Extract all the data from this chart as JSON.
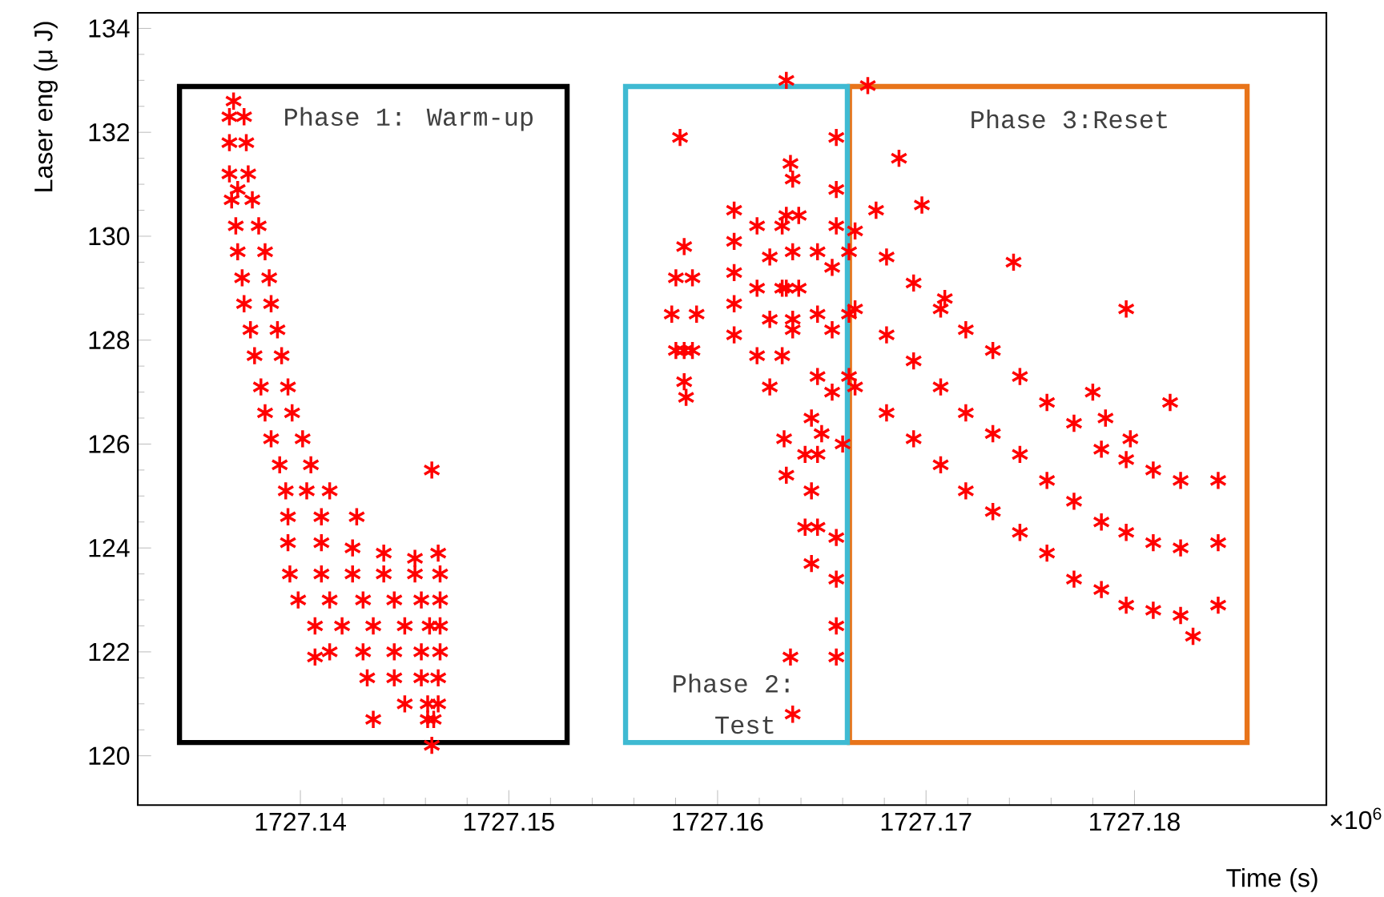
{
  "chart_data": {
    "type": "scatter",
    "xlabel": "Time (s)",
    "ylabel": "Laser eng (μ J)",
    "xlim": [
      1727.1322,
      1727.1892
    ],
    "ylim": [
      119.05,
      134.3
    ],
    "xticks": [
      1727.14,
      1727.15,
      1727.16,
      1727.17,
      1727.18
    ],
    "yticks": [
      120,
      122,
      124,
      126,
      128,
      130,
      132,
      134
    ],
    "marker": "cross",
    "annotations": [
      "×10$^{6}$",
      "Phase 1: Warm-up",
      "Phase 2:",
      "Test",
      "Phase 3:Reset"
    ],
    "series": [
      {
        "color": "#ff0000",
        "x": [
          1727.1368,
          1727.1366,
          1727.1373,
          1727.1366,
          1727.1374,
          1727.1366,
          1727.1375,
          1727.137,
          1727.1367,
          1727.1377,
          1727.1369,
          1727.138,
          1727.137,
          1727.1383,
          1727.1372,
          1727.1385,
          1727.1373,
          1727.1386,
          1727.1376,
          1727.1389,
          1727.1378,
          1727.1391,
          1727.1381,
          1727.1394,
          1727.1383,
          1727.1396,
          1727.1386,
          1727.1401,
          1727.139,
          1727.1405,
          1727.1393,
          1727.1403,
          1727.1414,
          1727.1394,
          1727.141,
          1727.1427,
          1727.1394,
          1727.141,
          1727.1425,
          1727.144,
          1727.1455,
          1727.1466,
          1727.1395,
          1727.141,
          1727.1425,
          1727.144,
          1727.1455,
          1727.1467,
          1727.1399,
          1727.1414,
          1727.143,
          1727.1445,
          1727.1458,
          1727.1467,
          1727.1407,
          1727.142,
          1727.1435,
          1727.145,
          1727.1462,
          1727.1467,
          1727.1414,
          1727.143,
          1727.1445,
          1727.1458,
          1727.1467,
          1727.1432,
          1727.1445,
          1727.1458,
          1727.1466,
          1727.145,
          1727.1461,
          1727.1466,
          1727.1461,
          1727.1464,
          1727.1463,
          1727.1407,
          1727.1435,
          1727.1463,
          1727.1582,
          1727.1584,
          1727.158,
          1727.1588,
          1727.1578,
          1727.159,
          1727.1584,
          1727.158,
          1727.1588,
          1727.1584,
          1727.1585,
          1727.1608,
          1727.1608,
          1727.1608,
          1727.1608,
          1727.1608,
          1727.1619,
          1727.1631,
          1727.1625,
          1727.1619,
          1727.1631,
          1727.1625,
          1727.1619,
          1727.1631,
          1727.1625,
          1727.1633,
          1727.1635,
          1727.1636,
          1727.1633,
          1727.1639,
          1727.1636,
          1727.1633,
          1727.1639,
          1727.1636,
          1727.1636,
          1727.1645,
          1727.1642,
          1727.1648,
          1727.1645,
          1727.1642,
          1727.1648,
          1727.1645,
          1727.1632,
          1727.1633,
          1727.1657,
          1727.1657,
          1727.1657,
          1727.1648,
          1727.1655,
          1727.1663,
          1727.1648,
          1727.1655,
          1727.1663,
          1727.1648,
          1727.1655,
          1727.1663,
          1727.165,
          1727.166,
          1727.1657,
          1727.1657,
          1727.1657,
          1727.1657,
          1727.1635,
          1727.1636,
          1727.1666,
          1727.1666,
          1727.1666,
          1727.1681,
          1727.1681,
          1727.1681,
          1727.1694,
          1727.1694,
          1727.1694,
          1727.1707,
          1727.1707,
          1727.1707,
          1727.1719,
          1727.1719,
          1727.1719,
          1727.1732,
          1727.1732,
          1727.1732,
          1727.1745,
          1727.1745,
          1727.1745,
          1727.1758,
          1727.1758,
          1727.1758,
          1727.1771,
          1727.1771,
          1727.1771,
          1727.1784,
          1727.1784,
          1727.1784,
          1727.1796,
          1727.1796,
          1727.1796,
          1727.1809,
          1727.1809,
          1727.1809,
          1727.1822,
          1727.1822,
          1727.1822,
          1727.184,
          1727.184,
          1727.184,
          1727.1687,
          1727.1698,
          1727.1742,
          1727.1796,
          1727.178,
          1727.1817,
          1727.1786,
          1727.1798,
          1727.1828,
          1727.1672,
          1727.1676,
          1727.1709
        ],
        "values": [
          132.6,
          132.3,
          132.3,
          131.8,
          131.8,
          131.2,
          131.2,
          130.9,
          130.7,
          130.7,
          130.2,
          130.2,
          129.7,
          129.7,
          129.2,
          129.2,
          128.7,
          128.7,
          128.2,
          128.2,
          127.7,
          127.7,
          127.1,
          127.1,
          126.6,
          126.6,
          126.1,
          126.1,
          125.6,
          125.6,
          125.1,
          125.1,
          125.1,
          124.6,
          124.6,
          124.6,
          124.1,
          124.1,
          124.0,
          123.9,
          123.8,
          123.9,
          123.5,
          123.5,
          123.5,
          123.5,
          123.5,
          123.5,
          123.0,
          123.0,
          123.0,
          123.0,
          123.0,
          123.0,
          122.5,
          122.5,
          122.5,
          122.5,
          122.5,
          122.5,
          122.0,
          122.0,
          122.0,
          122.0,
          122.0,
          121.5,
          121.5,
          121.5,
          121.5,
          121.0,
          121.0,
          121.0,
          120.7,
          120.7,
          125.5,
          121.9,
          120.7,
          120.2,
          131.9,
          129.8,
          129.2,
          129.2,
          128.5,
          128.5,
          127.8,
          127.8,
          127.8,
          127.2,
          126.9,
          130.5,
          129.9,
          129.3,
          128.7,
          128.1,
          130.2,
          130.2,
          129.6,
          129.0,
          129.0,
          128.4,
          127.7,
          127.7,
          127.1,
          133.0,
          131.4,
          131.1,
          130.4,
          130.4,
          129.7,
          129.0,
          129.0,
          128.4,
          128.2,
          126.5,
          125.8,
          125.8,
          125.1,
          124.4,
          124.4,
          123.7,
          126.1,
          125.4,
          131.9,
          130.9,
          130.2,
          129.7,
          129.4,
          129.7,
          128.5,
          128.2,
          128.5,
          127.3,
          127.0,
          127.3,
          126.2,
          126.0,
          124.2,
          123.4,
          122.5,
          121.9,
          121.9,
          120.8,
          130.1,
          128.6,
          127.1,
          129.6,
          128.1,
          126.6,
          129.1,
          127.6,
          126.1,
          128.6,
          127.1,
          125.6,
          128.2,
          126.6,
          125.1,
          127.8,
          126.2,
          124.7,
          127.3,
          125.8,
          124.3,
          126.8,
          125.3,
          123.9,
          126.4,
          124.9,
          123.4,
          125.9,
          124.5,
          123.2,
          125.7,
          124.3,
          122.9,
          125.5,
          124.1,
          122.8,
          125.3,
          124.0,
          122.7,
          125.3,
          124.1,
          122.9,
          131.5,
          130.6,
          129.5,
          128.6,
          127.0,
          126.8,
          126.5,
          126.1,
          122.3,
          132.9,
          130.5,
          128.8
        ]
      }
    ]
  }
}
